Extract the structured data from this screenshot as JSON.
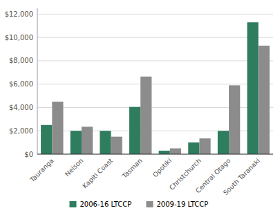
{
  "chart_data": {
    "type": "bar",
    "categories": [
      "Tauranga",
      "Nelson",
      "Kapiti Coast",
      "Tasman",
      "Opotiki",
      "Christchurch",
      "Central Otago",
      "South Taranaki"
    ],
    "series": [
      {
        "name": "2006-16 LTCCP",
        "color": "#2e7d5e",
        "values": [
          2500,
          2000,
          2000,
          4050,
          300,
          1000,
          2000,
          11300
        ]
      },
      {
        "name": "2009-19 LTCCP",
        "color": "#8c8c8c",
        "values": [
          4500,
          2350,
          1500,
          6650,
          500,
          1350,
          5900,
          9300
        ]
      }
    ],
    "ylim": [
      0,
      12500
    ],
    "yticks": [
      {
        "value": 0,
        "label": "$0"
      },
      {
        "value": 2000,
        "label": "$2,000"
      },
      {
        "value": 4000,
        "label": "$4,000"
      },
      {
        "value": 6000,
        "label": "$6,000"
      },
      {
        "value": 8000,
        "label": "$8,000"
      },
      {
        "value": 10000,
        "label": "$10,000"
      },
      {
        "value": 12000,
        "label": "$12,000"
      }
    ],
    "grid": true,
    "legend": "bottom"
  }
}
